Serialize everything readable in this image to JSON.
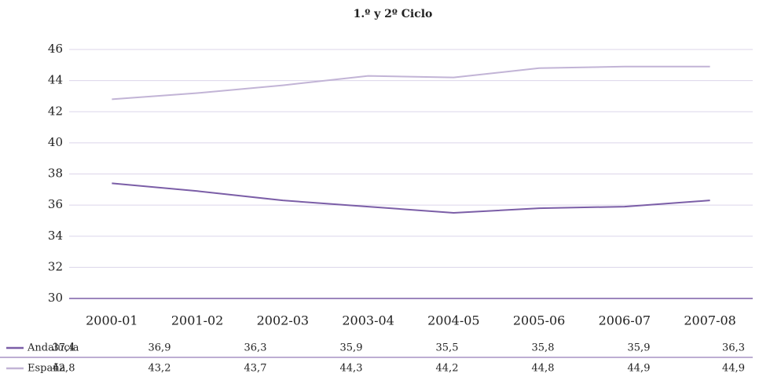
{
  "chart_data": {
    "type": "line",
    "title": "1.º y 2º Ciclo",
    "categories": [
      "2000-01",
      "2001-02",
      "2002-03",
      "2003-04",
      "2004-05",
      "2005-06",
      "2006-07",
      "2007-08"
    ],
    "series": [
      {
        "name": "Andalucía",
        "color": "#7b5ea7",
        "values": [
          37.4,
          36.9,
          36.3,
          35.9,
          35.5,
          35.8,
          35.9,
          36.3
        ],
        "value_labels": [
          "37,4",
          "36,9",
          "36,3",
          "35,9",
          "35,5",
          "35,8",
          "35,9",
          "36,3"
        ]
      },
      {
        "name": "España",
        "color": "#c2b4d6",
        "values": [
          42.8,
          43.2,
          43.7,
          44.3,
          44.2,
          44.8,
          44.9,
          44.9
        ],
        "value_labels": [
          "42,8",
          "43,2",
          "43,7",
          "44,3",
          "44,2",
          "44,8",
          "44,9",
          "44,9"
        ]
      }
    ],
    "ylim": [
      30,
      46
    ],
    "yticks": [
      30,
      32,
      34,
      36,
      38,
      40,
      42,
      44,
      46
    ],
    "grid": true
  }
}
